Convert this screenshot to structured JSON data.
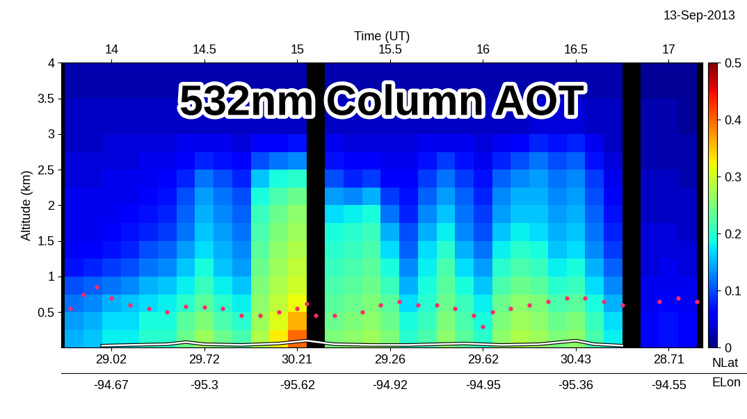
{
  "chart_data": {
    "type": "heatmap",
    "title": "532nm Column AOT",
    "subtitle": "13-Sep-2013",
    "x_label": "Time (UT)",
    "y_label": "Altitude (km)",
    "xlim": [
      13.73,
      17.18
    ],
    "xticks": [
      14,
      14.5,
      15,
      15.5,
      16,
      16.5,
      17
    ],
    "ylim": [
      0,
      4
    ],
    "yticks": [
      0.5,
      1,
      1.5,
      2,
      2.5,
      3,
      3.5,
      4
    ],
    "lat_label": "NLat",
    "lon_label": "ELon",
    "lat_ticks": [
      {
        "value": 14,
        "label": "29.02"
      },
      {
        "value": 14.5,
        "label": "29.72"
      },
      {
        "value": 15,
        "label": "30.21"
      },
      {
        "value": 15.5,
        "label": "29.26"
      },
      {
        "value": 16,
        "label": "29.62"
      },
      {
        "value": 16.5,
        "label": "30.43"
      },
      {
        "value": 17,
        "label": "28.71"
      }
    ],
    "lon_ticks": [
      {
        "value": 14,
        "label": "-94.67"
      },
      {
        "value": 14.5,
        "label": "-95.3"
      },
      {
        "value": 15,
        "label": "-95.62"
      },
      {
        "value": 15.5,
        "label": "-94.92"
      },
      {
        "value": 16,
        "label": "-94.95"
      },
      {
        "value": 16.5,
        "label": "-95.36"
      },
      {
        "value": 17,
        "label": "-94.55"
      }
    ],
    "color": "jet",
    "colorbar": {
      "range": [
        0,
        0.5
      ],
      "ticks": [
        0,
        0.1,
        0.2,
        0.3,
        0.4,
        0.5
      ]
    },
    "x_edges": [
      13.75,
      13.85,
      13.95,
      14.05,
      14.15,
      14.25,
      14.35,
      14.45,
      14.55,
      14.65,
      14.75,
      14.85,
      14.95,
      15.05,
      15.15,
      15.25,
      15.35,
      15.45,
      15.55,
      15.65,
      15.75,
      15.85,
      15.95,
      16.05,
      16.15,
      16.25,
      16.35,
      16.45,
      16.55,
      16.65,
      16.75,
      16.85,
      16.95,
      17.05,
      17.15
    ],
    "y_edges": [
      0,
      0.25,
      0.5,
      0.75,
      1,
      1.25,
      1.5,
      1.75,
      2,
      2.25,
      2.5,
      2.75,
      3,
      3.5,
      4
    ],
    "cells_by_time": [
      [
        0.15,
        0.14,
        0.12,
        0.1,
        0.07,
        0.06,
        0.05,
        0.05,
        0.05,
        0.04,
        0.04,
        0.03,
        0.03,
        0.02
      ],
      [
        0.16,
        0.15,
        0.13,
        0.11,
        0.08,
        0.06,
        0.05,
        0.05,
        0.05,
        0.04,
        0.04,
        0.03,
        0.03,
        0.02
      ],
      [
        0.18,
        0.17,
        0.15,
        0.12,
        0.09,
        0.07,
        0.06,
        0.05,
        0.05,
        0.05,
        0.04,
        0.04,
        0.03,
        0.02
      ],
      [
        0.18,
        0.17,
        0.16,
        0.13,
        0.1,
        0.08,
        0.07,
        0.06,
        0.05,
        0.05,
        0.04,
        0.04,
        0.03,
        0.02
      ],
      [
        0.2,
        0.19,
        0.17,
        0.15,
        0.12,
        0.1,
        0.08,
        0.07,
        0.06,
        0.05,
        0.05,
        0.04,
        0.03,
        0.02
      ],
      [
        0.2,
        0.19,
        0.18,
        0.16,
        0.13,
        0.11,
        0.09,
        0.08,
        0.07,
        0.06,
        0.05,
        0.04,
        0.03,
        0.02
      ],
      [
        0.24,
        0.23,
        0.2,
        0.18,
        0.16,
        0.14,
        0.12,
        0.11,
        0.1,
        0.08,
        0.06,
        0.05,
        0.03,
        0.02
      ],
      [
        0.27,
        0.25,
        0.23,
        0.21,
        0.19,
        0.17,
        0.16,
        0.15,
        0.14,
        0.12,
        0.08,
        0.05,
        0.03,
        0.02
      ],
      [
        0.24,
        0.22,
        0.2,
        0.18,
        0.16,
        0.15,
        0.14,
        0.13,
        0.12,
        0.1,
        0.07,
        0.05,
        0.03,
        0.02
      ],
      [
        0.22,
        0.2,
        0.18,
        0.16,
        0.14,
        0.13,
        0.12,
        0.11,
        0.1,
        0.08,
        0.06,
        0.04,
        0.03,
        0.02
      ],
      [
        0.28,
        0.27,
        0.26,
        0.25,
        0.24,
        0.23,
        0.22,
        0.21,
        0.19,
        0.16,
        0.1,
        0.06,
        0.03,
        0.02
      ],
      [
        0.33,
        0.31,
        0.29,
        0.28,
        0.27,
        0.26,
        0.25,
        0.24,
        0.22,
        0.19,
        0.12,
        0.06,
        0.03,
        0.02
      ],
      [
        0.4,
        0.36,
        0.32,
        0.3,
        0.29,
        0.28,
        0.27,
        0.26,
        0.24,
        0.2,
        0.13,
        0.07,
        0.03,
        0.02
      ],
      [
        null,
        null,
        null,
        null,
        null,
        null,
        null,
        null,
        null,
        null,
        null,
        null,
        null,
        null
      ],
      [
        0.25,
        0.24,
        0.23,
        0.22,
        0.21,
        0.2,
        0.19,
        0.17,
        0.14,
        0.1,
        0.07,
        0.05,
        0.03,
        0.02
      ],
      [
        0.26,
        0.25,
        0.24,
        0.23,
        0.22,
        0.21,
        0.2,
        0.18,
        0.13,
        0.08,
        0.06,
        0.04,
        0.03,
        0.02
      ],
      [
        0.27,
        0.26,
        0.25,
        0.24,
        0.23,
        0.22,
        0.21,
        0.19,
        0.15,
        0.09,
        0.06,
        0.04,
        0.03,
        0.02
      ],
      [
        0.25,
        0.24,
        0.23,
        0.21,
        0.19,
        0.17,
        0.15,
        0.12,
        0.09,
        0.06,
        0.05,
        0.04,
        0.03,
        0.02
      ],
      [
        0.2,
        0.19,
        0.17,
        0.15,
        0.13,
        0.11,
        0.1,
        0.08,
        0.07,
        0.06,
        0.05,
        0.04,
        0.03,
        0.02
      ],
      [
        0.22,
        0.21,
        0.2,
        0.19,
        0.18,
        0.17,
        0.15,
        0.13,
        0.11,
        0.09,
        0.07,
        0.05,
        0.03,
        0.02
      ],
      [
        0.26,
        0.25,
        0.24,
        0.23,
        0.22,
        0.2,
        0.18,
        0.16,
        0.14,
        0.12,
        0.09,
        0.05,
        0.03,
        0.02
      ],
      [
        0.23,
        0.22,
        0.21,
        0.19,
        0.17,
        0.15,
        0.13,
        0.12,
        0.11,
        0.09,
        0.07,
        0.05,
        0.03,
        0.02
      ],
      [
        0.2,
        0.19,
        0.18,
        0.16,
        0.14,
        0.12,
        0.1,
        0.09,
        0.08,
        0.07,
        0.05,
        0.04,
        0.03,
        0.02
      ],
      [
        0.26,
        0.25,
        0.24,
        0.22,
        0.2,
        0.18,
        0.16,
        0.14,
        0.13,
        0.11,
        0.08,
        0.05,
        0.03,
        0.02
      ],
      [
        0.28,
        0.27,
        0.26,
        0.24,
        0.22,
        0.2,
        0.18,
        0.16,
        0.15,
        0.13,
        0.1,
        0.06,
        0.03,
        0.02
      ],
      [
        0.27,
        0.26,
        0.25,
        0.23,
        0.21,
        0.19,
        0.17,
        0.16,
        0.15,
        0.14,
        0.12,
        0.08,
        0.04,
        0.02
      ],
      [
        0.25,
        0.24,
        0.22,
        0.2,
        0.18,
        0.16,
        0.15,
        0.14,
        0.13,
        0.12,
        0.1,
        0.07,
        0.04,
        0.02
      ],
      [
        0.26,
        0.25,
        0.23,
        0.21,
        0.19,
        0.17,
        0.16,
        0.15,
        0.14,
        0.13,
        0.11,
        0.08,
        0.04,
        0.02
      ],
      [
        0.22,
        0.21,
        0.19,
        0.17,
        0.15,
        0.13,
        0.12,
        0.11,
        0.1,
        0.09,
        0.07,
        0.05,
        0.03,
        0.02
      ],
      [
        0.18,
        0.17,
        0.15,
        0.13,
        0.11,
        0.09,
        0.08,
        0.07,
        0.06,
        0.05,
        0.04,
        0.03,
        0.03,
        0.02
      ],
      [
        null,
        null,
        null,
        null,
        null,
        null,
        null,
        null,
        null,
        null,
        null,
        null,
        null,
        null
      ],
      [
        0.06,
        0.06,
        0.05,
        0.05,
        0.04,
        0.04,
        0.04,
        0.03,
        0.03,
        0.03,
        0.02,
        0.02,
        0.02,
        0.01
      ],
      [
        0.07,
        0.07,
        0.06,
        0.05,
        0.05,
        0.04,
        0.04,
        0.03,
        0.03,
        0.03,
        0.02,
        0.02,
        0.02,
        0.01
      ],
      [
        0.06,
        0.06,
        0.05,
        0.05,
        0.04,
        0.04,
        0.03,
        0.03,
        0.03,
        0.02,
        0.02,
        0.02,
        0.01,
        0.01
      ]
    ],
    "series": [
      {
        "color": "#ff2a6d",
        "marker": "o",
        "line_style": "none",
        "x": [
          13.78,
          13.85,
          13.92,
          14.0,
          14.1,
          14.2,
          14.3,
          14.4,
          14.5,
          14.6,
          14.7,
          14.8,
          14.9,
          15.0,
          15.05,
          15.1,
          15.2,
          15.3,
          15.35,
          15.45,
          15.55,
          15.65,
          15.75,
          15.85,
          15.95,
          16.0,
          16.05,
          16.15,
          16.25,
          16.35,
          16.45,
          16.55,
          16.65,
          16.75,
          16.85,
          16.95,
          17.05,
          17.15
        ],
        "values": [
          0.55,
          0.75,
          0.85,
          0.7,
          0.6,
          0.55,
          0.5,
          0.58,
          0.57,
          0.55,
          0.45,
          0.45,
          0.5,
          0.55,
          0.62,
          0.45,
          0.45,
          null,
          0.5,
          0.6,
          0.65,
          0.6,
          0.6,
          0.55,
          0.45,
          0.3,
          0.5,
          0.55,
          0.6,
          0.65,
          0.7,
          0.7,
          0.65,
          0.6,
          null,
          0.65,
          0.7,
          0.65
        ]
      },
      {
        "color": "#ffffff",
        "marker": "none",
        "line_style": "solid",
        "x": [
          13.95,
          14.1,
          14.3,
          14.4,
          14.5,
          14.7,
          14.9,
          15.05,
          15.2,
          15.4,
          15.6,
          15.9,
          16.1,
          16.3,
          16.5,
          16.6,
          16.75
        ],
        "values": [
          0.03,
          0.04,
          0.05,
          0.08,
          0.05,
          0.04,
          0.06,
          0.1,
          0.05,
          0.04,
          0.04,
          0.06,
          0.04,
          0.05,
          0.1,
          0.05,
          0.03
        ]
      }
    ]
  }
}
